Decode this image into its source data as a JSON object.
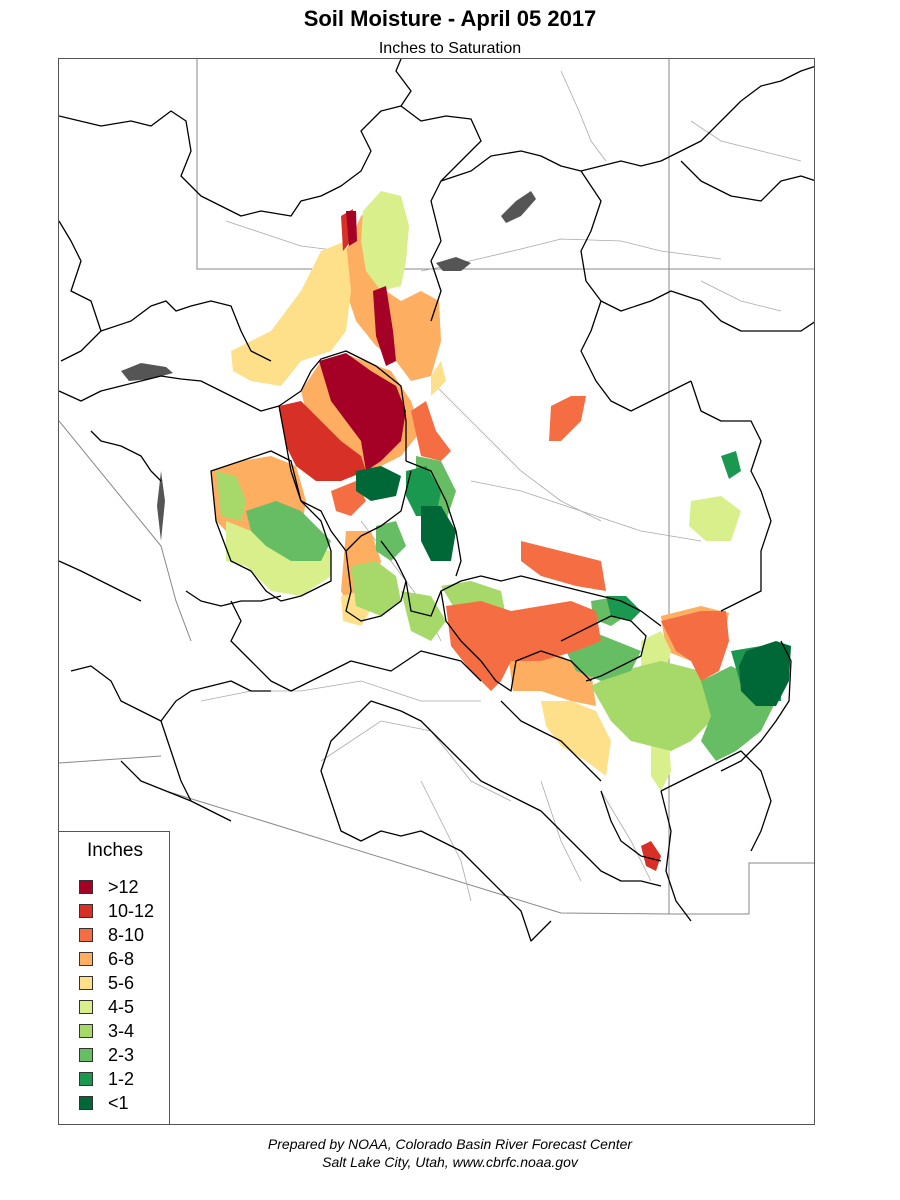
{
  "title": "Soil Moisture - April 05 2017",
  "subtitle": "Inches to Saturation",
  "legend": {
    "title": "Inches",
    "items": [
      {
        "label": ">12",
        "color": "#a50026"
      },
      {
        "label": "10-12",
        "color": "#d73027"
      },
      {
        "label": "8-10",
        "color": "#f46d43"
      },
      {
        "label": "6-8",
        "color": "#fdae61"
      },
      {
        "label": "5-6",
        "color": "#fee08b"
      },
      {
        "label": "4-5",
        "color": "#d9ef8b"
      },
      {
        "label": "3-4",
        "color": "#a6d96a"
      },
      {
        "label": "2-3",
        "color": "#66bd63"
      },
      {
        "label": "1-2",
        "color": "#1a9850"
      },
      {
        "label": "<1",
        "color": "#006837"
      }
    ]
  },
  "credits": {
    "line1": "Prepared by NOAA, Colorado Basin River Forecast Center",
    "line2": "Salt Lake City, Utah, www.cbrfc.noaa.gov"
  }
}
